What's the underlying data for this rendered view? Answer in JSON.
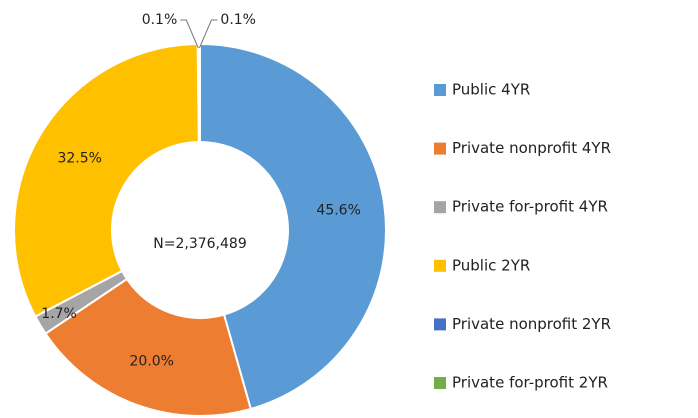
{
  "chart_data": {
    "type": "pie",
    "center_label": "N=2,376,489",
    "categories": [
      "Public 4YR",
      "Private nonprofit 4YR",
      "Private for-profit 4YR",
      "Public 2YR",
      "Private nonprofit 2YR",
      "Private for-profit 2YR"
    ],
    "values": [
      45.6,
      20.0,
      1.7,
      32.5,
      0.1,
      0.1
    ],
    "value_labels": [
      "45.6%",
      "20.0%",
      "1.7%",
      "32.5%",
      "0.1%",
      "0.1%"
    ],
    "colors": [
      "#5b9bd5",
      "#ed7d31",
      "#a5a5a5",
      "#ffc000",
      "#4472c4",
      "#70ad47"
    ],
    "legend": "right"
  }
}
